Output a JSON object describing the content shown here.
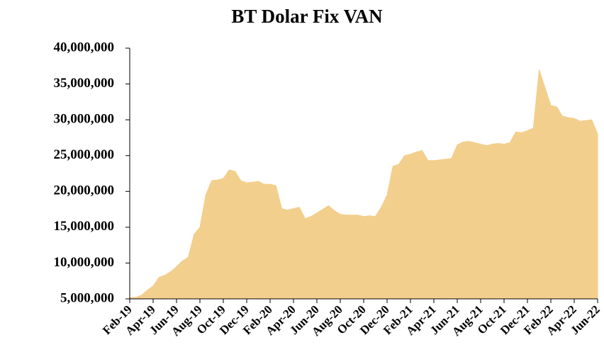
{
  "chart_data": {
    "type": "area",
    "title": "BT Dolar Fix VAN",
    "color": "#f3cf8e",
    "categories": [
      "Feb-19",
      null,
      null,
      null,
      "Apr-19",
      null,
      null,
      null,
      "Jun-19",
      null,
      null,
      null,
      "Aug-19",
      null,
      null,
      null,
      "Oct-19",
      null,
      null,
      null,
      "Dec-19",
      null,
      null,
      null,
      "Feb-20",
      null,
      null,
      null,
      "Apr-20",
      null,
      null,
      null,
      "Jun-20",
      null,
      null,
      null,
      "Aug-20",
      null,
      null,
      null,
      "Oct-20",
      null,
      null,
      null,
      "Dec-20",
      null,
      null,
      null,
      "Feb-21",
      null,
      null,
      null,
      "Apr-21",
      null,
      null,
      null,
      "Jun-21",
      null,
      null,
      null,
      "Aug-21",
      null,
      null,
      null,
      "Oct-21",
      null,
      null,
      null,
      "Dec-21",
      null,
      null,
      null,
      "Feb-22",
      null,
      null,
      null,
      "Apr-22",
      null,
      null,
      null,
      "Jun-22"
    ],
    "values": [
      5200000,
      5200000,
      5500000,
      6200000,
      6800000,
      8000000,
      8300000,
      8800000,
      9500000,
      10300000,
      10800000,
      14000000,
      15000000,
      19500000,
      21500000,
      21600000,
      21800000,
      23000000,
      22800000,
      21500000,
      21200000,
      21300000,
      21400000,
      21000000,
      21000000,
      20800000,
      17600000,
      17400000,
      17600000,
      17800000,
      16200000,
      16500000,
      17000000,
      17500000,
      18000000,
      17300000,
      16800000,
      16700000,
      16700000,
      16700000,
      16500000,
      16600000,
      16500000,
      17800000,
      19500000,
      23500000,
      23800000,
      25000000,
      25200000,
      25500000,
      25700000,
      24300000,
      24300000,
      24400000,
      24500000,
      24600000,
      26500000,
      26900000,
      27000000,
      26800000,
      26600000,
      26400000,
      26600000,
      26700000,
      26600000,
      26800000,
      28300000,
      28200000,
      28500000,
      28800000,
      37000000,
      34500000,
      32000000,
      31800000,
      30500000,
      30300000,
      30200000,
      29800000,
      29900000,
      30000000,
      28000000
    ],
    "ylim": [
      5000000,
      40000000
    ],
    "yticks": [
      {
        "value": 5000000,
        "label": "5,000,000"
      },
      {
        "value": 10000000,
        "label": "10,000,000"
      },
      {
        "value": 15000000,
        "label": "15,000,000"
      },
      {
        "value": 20000000,
        "label": "20,000,000"
      },
      {
        "value": 25000000,
        "label": "25,000,000"
      },
      {
        "value": 30000000,
        "label": "30,000,000"
      },
      {
        "value": 35000000,
        "label": "35,000,000"
      },
      {
        "value": 40000000,
        "label": "40,000,000"
      }
    ]
  }
}
